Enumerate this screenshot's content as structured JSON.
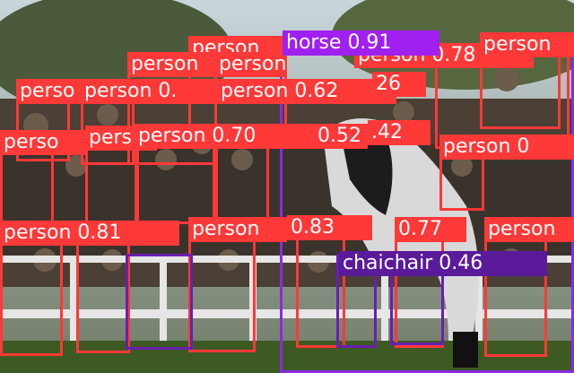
{
  "colors": {
    "person": "#ff3838",
    "horse": "#a020f0",
    "chair": "#5a1a9a"
  },
  "detections": {
    "horse": "horse 0.91",
    "top_person_1": "person",
    "top_person_2": "person",
    "top_person_3": "person",
    "top_right_0_78": "person 0.78",
    "row2_left": "perso",
    "row2_a": "person 0.",
    "row2_b": "person 0.62",
    "row2_26": "26",
    "row3_a": "perso",
    "row3_b": "pers",
    "row3_c": "person 0.70",
    "row3_d": "0.52",
    "row3_e": ".42",
    "row3_right": "person 0",
    "row4_a": "person 0.81",
    "row4_b": "person",
    "row4_c": "0.83",
    "row4_d": "0.77",
    "row4_right": "person",
    "chairs_label": "chaichair 0.46"
  }
}
